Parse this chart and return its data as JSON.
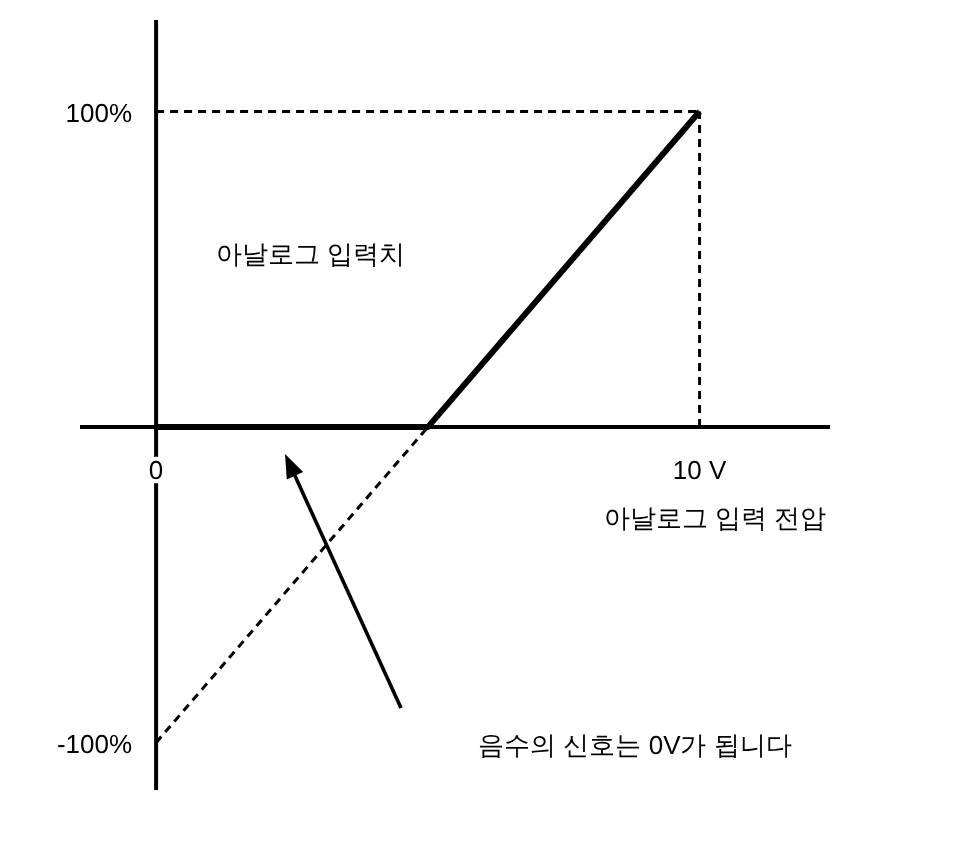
{
  "chart_data": {
    "type": "line",
    "xlabel": "아날로그 입력 전압",
    "ylabel": "아날로그 입력치",
    "xlim": [
      -1.4,
      12.4
    ],
    "ylim": [
      -115,
      129
    ],
    "xticks": [
      {
        "value": 0,
        "label": "0"
      },
      {
        "value": 10,
        "label": "10 V"
      }
    ],
    "yticks": [
      {
        "value": 100,
        "label": "100%"
      },
      {
        "value": -100,
        "label": "-100%"
      }
    ],
    "grid": false,
    "marker": "none",
    "series": [
      {
        "x": [
          0,
          5,
          10
        ],
        "values": [
          0,
          0,
          100
        ],
        "color": "#000000",
        "line_style": "solid"
      },
      {
        "x": [
          0,
          5
        ],
        "values": [
          -100,
          0
        ],
        "color": "#000000",
        "line_style": "dashed"
      },
      {
        "x": [
          0,
          10
        ],
        "values": [
          100,
          100
        ],
        "color": "#000000",
        "line_style": "dashed"
      },
      {
        "x": [
          10,
          10
        ],
        "values": [
          0,
          100
        ],
        "color": "#000000",
        "line_style": "dashed"
      }
    ],
    "annotations": [
      "음수의 신호는 0V가 됩니다"
    ]
  }
}
